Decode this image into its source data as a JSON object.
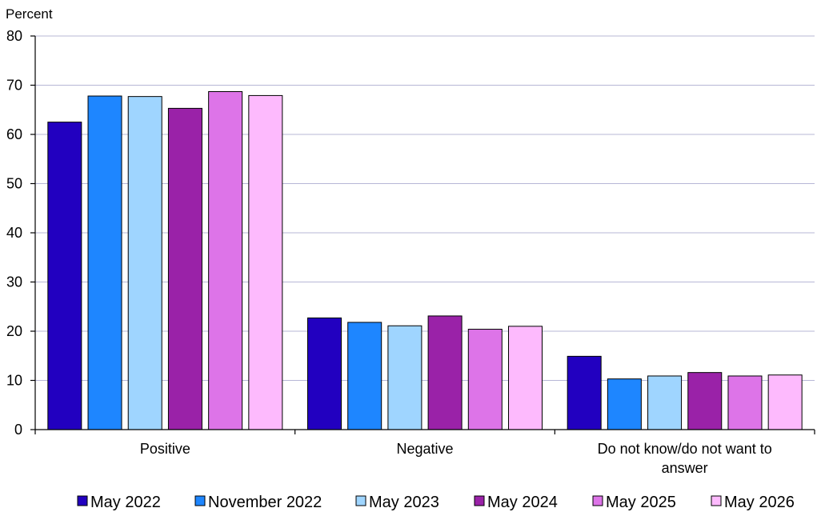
{
  "chart_data": {
    "type": "bar",
    "ylabel": "Percent",
    "ylim": [
      0,
      80
    ],
    "yticks": [
      0,
      10,
      20,
      30,
      40,
      50,
      60,
      70,
      80
    ],
    "grid": true,
    "legend_position": "bottom",
    "categories": [
      [
        "Positive"
      ],
      [
        "Negative"
      ],
      [
        "Do not know/do not want to",
        "answer"
      ]
    ],
    "series": [
      {
        "name": "May 2022",
        "color": "#2200c0",
        "values": [
          62.5,
          22.7,
          14.9
        ]
      },
      {
        "name": "November 2022",
        "color": "#1e86ff",
        "values": [
          67.8,
          21.8,
          10.3
        ]
      },
      {
        "name": "May 2023",
        "color": "#9fd5ff",
        "values": [
          67.7,
          21.1,
          10.9
        ]
      },
      {
        "name": "May 2024",
        "color": "#9a22a8",
        "values": [
          65.3,
          23.1,
          11.6
        ]
      },
      {
        "name": "May 2025",
        "color": "#dd74e8",
        "values": [
          68.7,
          20.4,
          10.9
        ]
      },
      {
        "name": "May 2026",
        "color": "#fdbafd",
        "values": [
          67.9,
          21.0,
          11.1
        ]
      }
    ]
  }
}
